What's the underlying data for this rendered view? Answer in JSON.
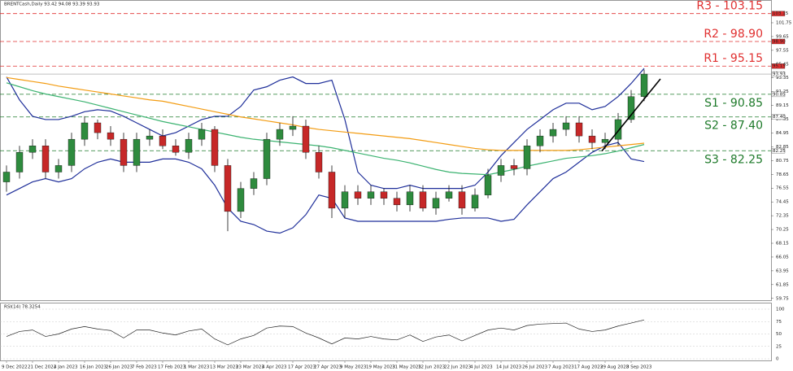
{
  "chart_data": {
    "type": "candlestick",
    "title": "BRENTCash,Daily  93.42 94.08 93.39 93.93",
    "categories": [
      "9 Dec 2022",
      null,
      "21 Dec 2022",
      null,
      "4 Jan 2023",
      null,
      "16 Jan 2023",
      null,
      "26 Jan 2023",
      null,
      "7 Feb 2023",
      null,
      "17 Feb 2023",
      null,
      "1 Mar 2023",
      null,
      "13 Mar 2023",
      null,
      "23 Mar 2023",
      null,
      "4 Apr 2023",
      null,
      "17 Apr 2023",
      null,
      "27 Apr 2023",
      null,
      "9 May 2023",
      null,
      "19 May 2023",
      null,
      "31 May 2023",
      null,
      "12 Jun 2023",
      null,
      "22 Jun 2023",
      null,
      "4 Jul 2023",
      null,
      "14 Jul 2023",
      null,
      "26 Jul 2023",
      null,
      "7 Aug 2023",
      null,
      "17 Aug 2023",
      null,
      "29 Aug 2023",
      null,
      "8 Sep 2023",
      null
    ],
    "open": [
      77.5,
      79,
      82,
      83,
      79,
      80,
      84,
      86.5,
      85,
      84,
      80,
      84,
      84.5,
      83,
      82,
      84,
      85.5,
      80,
      73,
      76.5,
      78,
      84,
      85.5,
      86,
      82,
      79,
      73.5,
      76,
      75,
      76,
      75,
      74,
      76,
      73.5,
      75,
      76,
      73.5,
      75.5,
      78.5,
      80,
      79.5,
      83,
      84.5,
      85.5,
      86.5,
      84.5,
      83.5,
      84,
      87,
      90.5
    ],
    "high": [
      80,
      83,
      84,
      84,
      81,
      85,
      87.5,
      87,
      86,
      85,
      85,
      85.5,
      85.5,
      84,
      85,
      86.5,
      86,
      81,
      77.5,
      79,
      85,
      86.5,
      87.5,
      87,
      83,
      80,
      77,
      77,
      77,
      76.5,
      76,
      77,
      77,
      76,
      77,
      77,
      76.5,
      79.5,
      81,
      81,
      84,
      85.5,
      86.5,
      87.5,
      87.5,
      85.5,
      85,
      88,
      91.5,
      94.6
    ],
    "low": [
      76,
      78,
      81,
      78,
      78,
      79,
      83,
      84,
      83,
      79,
      79,
      83,
      82.5,
      81.5,
      81,
      83,
      79,
      70,
      72,
      75.5,
      77,
      83,
      84.5,
      81,
      78,
      72,
      72,
      74,
      74,
      74,
      73,
      73,
      73,
      72.5,
      74.5,
      72.5,
      73,
      75,
      77.5,
      78.5,
      78.5,
      82,
      83.5,
      84.5,
      83.5,
      82.5,
      82.5,
      83,
      86.5,
      89.8
    ],
    "close": [
      79,
      82,
      83,
      79,
      80,
      84,
      86.5,
      85,
      84,
      80,
      84,
      84.5,
      83,
      82,
      84,
      85.5,
      80,
      73,
      76.5,
      78,
      84,
      85.5,
      86,
      82,
      79,
      73.5,
      76,
      75,
      76,
      75,
      74,
      76,
      73.5,
      75,
      76,
      73.5,
      75.5,
      78.5,
      80,
      79.5,
      83,
      84.5,
      85.5,
      86.5,
      84.5,
      83.5,
      84,
      87,
      90.5,
      93.93
    ],
    "up_color": "#2e8b3e",
    "down_color": "#c62828",
    "series": [
      {
        "color": "#1f2f9a",
        "values": [
          93.5,
          90,
          87.5,
          87,
          87,
          87.5,
          88.2,
          88.5,
          88.3,
          87.5,
          86.5,
          85.5,
          84.5,
          85,
          86,
          87,
          87.5,
          87.5,
          89,
          91.5,
          92,
          93,
          93.5,
          92.5,
          92.5,
          93,
          87,
          79,
          77,
          76.5,
          76.5,
          77,
          76.5,
          76.5,
          76.5,
          76.5,
          77,
          79,
          81.5,
          83.5,
          85.5,
          87,
          88.5,
          89.5,
          89.5,
          88.5,
          89,
          90.5,
          92.5,
          94.8
        ]
      },
      {
        "color": "#1f2f9a",
        "values": [
          75.5,
          76.5,
          77.5,
          78,
          77.5,
          78,
          79.5,
          80.5,
          81,
          80.5,
          80.5,
          80.5,
          81,
          81,
          80.5,
          79.5,
          77,
          73.5,
          71.5,
          71,
          70,
          69.7,
          70.5,
          72.5,
          75.5,
          75,
          72,
          71.5,
          71.5,
          71.5,
          71.5,
          71.5,
          71.5,
          71.5,
          71.8,
          72,
          72,
          72,
          71.5,
          71.8,
          74,
          76,
          78,
          79,
          80.5,
          82,
          83,
          83.5,
          81,
          80.6
        ]
      },
      {
        "color": "#f39c12",
        "values": [
          93.4,
          93.1,
          92.8,
          92.5,
          92.1,
          91.8,
          91.5,
          91.2,
          90.9,
          90.6,
          90.3,
          90,
          89.8,
          89.4,
          89,
          88.6,
          88.2,
          87.8,
          87.4,
          87.1,
          86.8,
          86.5,
          86.2,
          85.8,
          85.5,
          85.3,
          85.1,
          84.9,
          84.7,
          84.5,
          84.3,
          84.1,
          83.8,
          83.5,
          83.2,
          82.9,
          82.6,
          82.4,
          82.3,
          82.3,
          82.3,
          82.3,
          82.3,
          82.3,
          82.4,
          82.6,
          82.8,
          83,
          83.2,
          83.4
        ]
      },
      {
        "color": "#3cb371",
        "values": [
          92.6,
          92,
          91.4,
          90.9,
          90.5,
          90.1,
          89.7,
          89.2,
          88.7,
          88.2,
          87.7,
          87.2,
          86.7,
          86.3,
          85.9,
          85.5,
          85.1,
          84.7,
          84.3,
          84,
          83.8,
          83.6,
          83.4,
          83.2,
          83,
          82.7,
          82.3,
          81.9,
          81.5,
          81.1,
          80.8,
          80.4,
          79.9,
          79.4,
          79,
          78.8,
          78.7,
          78.6,
          79,
          79.4,
          79.9,
          80.3,
          80.7,
          81.1,
          81.3,
          81.5,
          81.8,
          82.2,
          82.7,
          83.2
        ]
      }
    ],
    "ylim": [
      59.1,
      104.6
    ],
    "yticks": [
      59.75,
      61.85,
      63.95,
      66.05,
      68.15,
      70.25,
      72.35,
      74.45,
      76.55,
      78.65,
      80.75,
      82.85,
      84.95,
      87.05,
      89.15,
      91.25,
      93.35,
      95.45,
      97.55,
      99.65,
      101.75
    ],
    "levels": [
      {
        "label": "R3 - 103.15",
        "value": 103.15,
        "tag": "103.15",
        "color": "#e03030"
      },
      {
        "label": "R2 - 98.90",
        "value": 98.9,
        "tag": "98.90",
        "color": "#e03030"
      },
      {
        "label": "R1 - 95.15",
        "value": 95.15,
        "tag": "95.15",
        "color": "#e03030"
      },
      {
        "label": "S1 - 90.85",
        "value": 90.85,
        "tag": "90.85",
        "color": "#1e7a2a"
      },
      {
        "label": "S2 - 87.40",
        "value": 87.4,
        "tag": "87.40",
        "color": "#1e7a2a"
      },
      {
        "label": "S3 - 82.25",
        "value": 82.25,
        "tag": "82.25",
        "color": "#1e7a2a"
      }
    ],
    "last_price": 93.93,
    "trendline": [
      [
        45.75,
        82.2
      ],
      [
        50.25,
        93.2
      ]
    ],
    "rsi": {
      "title": "RSI(14) 78.3254",
      "ylim": [
        0,
        100
      ],
      "yticks": [
        0,
        25,
        50,
        75,
        100
      ],
      "values": [
        45,
        55,
        58,
        45,
        50,
        60,
        65,
        60,
        57,
        42,
        58,
        58,
        52,
        48,
        56,
        60,
        40,
        28,
        40,
        47,
        62,
        66,
        65,
        52,
        42,
        30,
        42,
        40,
        45,
        40,
        38,
        48,
        35,
        44,
        48,
        36,
        47,
        58,
        62,
        58,
        67,
        70,
        71,
        72,
        60,
        55,
        58,
        66,
        72,
        78.33
      ]
    }
  }
}
